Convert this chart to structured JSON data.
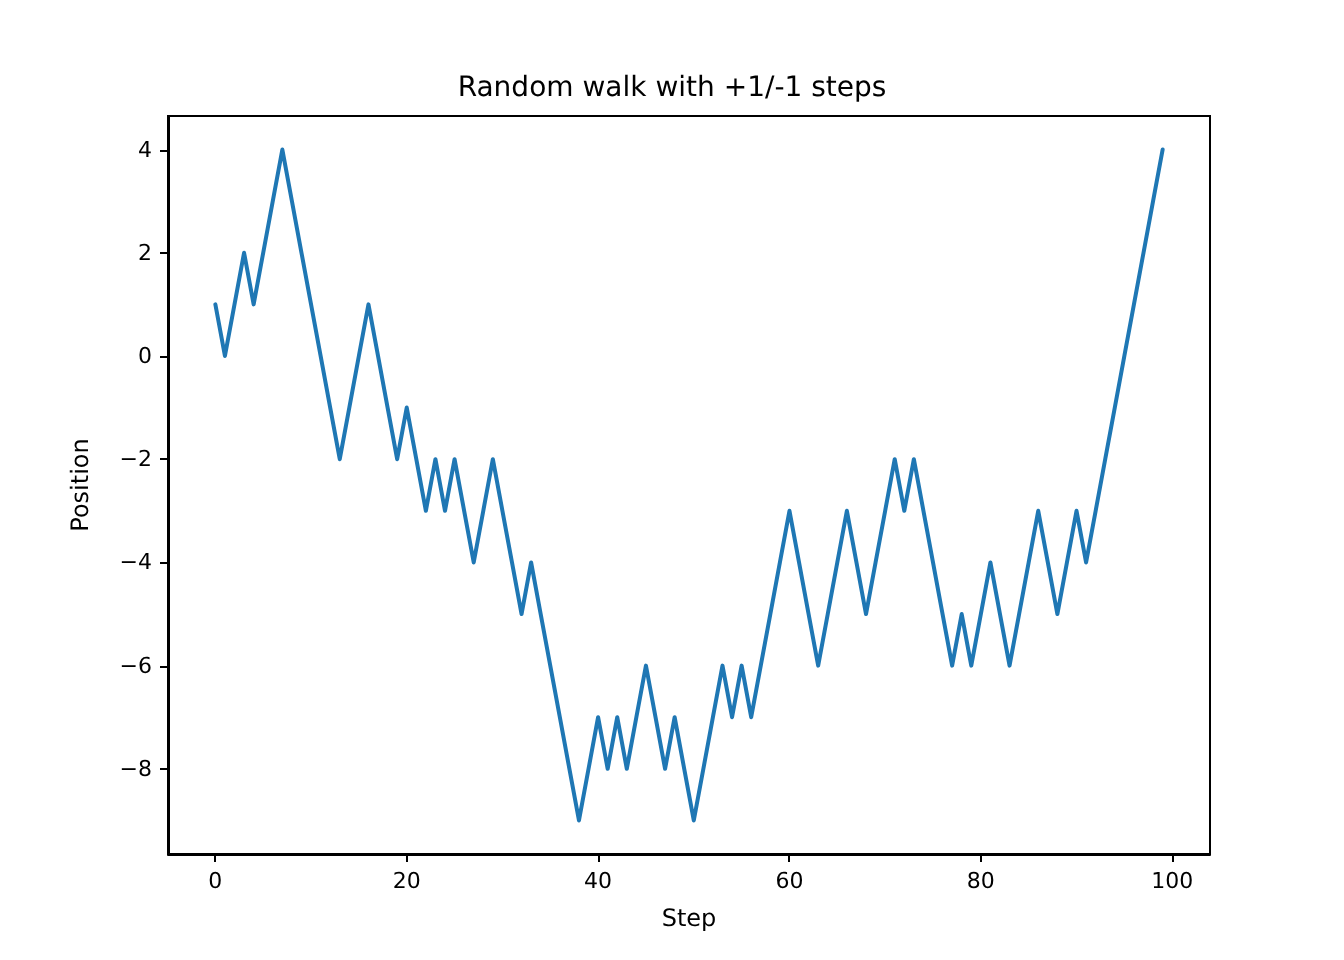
{
  "chart_data": {
    "type": "line",
    "title": "Random walk with +1/-1 steps",
    "xlabel": "Step",
    "ylabel": "Position",
    "x": [
      0,
      1,
      2,
      3,
      4,
      5,
      6,
      7,
      8,
      9,
      10,
      11,
      12,
      13,
      14,
      15,
      16,
      17,
      18,
      19,
      20,
      21,
      22,
      23,
      24,
      25,
      26,
      27,
      28,
      29,
      30,
      31,
      32,
      33,
      34,
      35,
      36,
      37,
      38,
      39,
      40,
      41,
      42,
      43,
      44,
      45,
      46,
      47,
      48,
      49,
      50,
      51,
      52,
      53,
      54,
      55,
      56,
      57,
      58,
      59,
      60,
      61,
      62,
      63,
      64,
      65,
      66,
      67,
      68,
      69,
      70,
      71,
      72,
      73,
      74,
      75,
      76,
      77,
      78,
      79,
      80,
      81,
      82,
      83,
      84,
      85,
      86,
      87,
      88,
      89,
      90,
      91,
      92,
      93,
      94,
      95,
      96,
      97,
      98,
      99
    ],
    "series": [
      {
        "color": "#1f77b4",
        "values": [
          1,
          0,
          1,
          2,
          1,
          2,
          3,
          4,
          3,
          2,
          1,
          0,
          -1,
          -2,
          -1,
          0,
          1,
          0,
          -1,
          -2,
          -1,
          -2,
          -3,
          -2,
          -3,
          -2,
          -3,
          -4,
          -3,
          -2,
          -3,
          -4,
          -5,
          -4,
          -5,
          -6,
          -7,
          -8,
          -9,
          -8,
          -7,
          -8,
          -7,
          -8,
          -7,
          -6,
          -7,
          -8,
          -7,
          -8,
          -9,
          -8,
          -7,
          -6,
          -7,
          -6,
          -7,
          -6,
          -5,
          -4,
          -3,
          -4,
          -5,
          -6,
          -5,
          -4,
          -3,
          -4,
          -5,
          -4,
          -3,
          -2,
          -3,
          -2,
          -3,
          -4,
          -5,
          -6,
          -5,
          -6,
          -5,
          -4,
          -5,
          -6,
          -5,
          -4,
          -3,
          -4,
          -5,
          -4,
          -3,
          -4,
          -3,
          -2,
          -1,
          0,
          1,
          2,
          3,
          4
        ]
      }
    ],
    "xlim": [
      -4.95,
      103.95
    ],
    "ylim": [
      -9.65,
      4.65
    ],
    "xticks": [
      0,
      20,
      40,
      60,
      80,
      100
    ],
    "yticks": [
      -8,
      -6,
      -4,
      -2,
      0,
      2,
      4
    ],
    "grid": false,
    "marker": "none",
    "line_style": "solid"
  }
}
